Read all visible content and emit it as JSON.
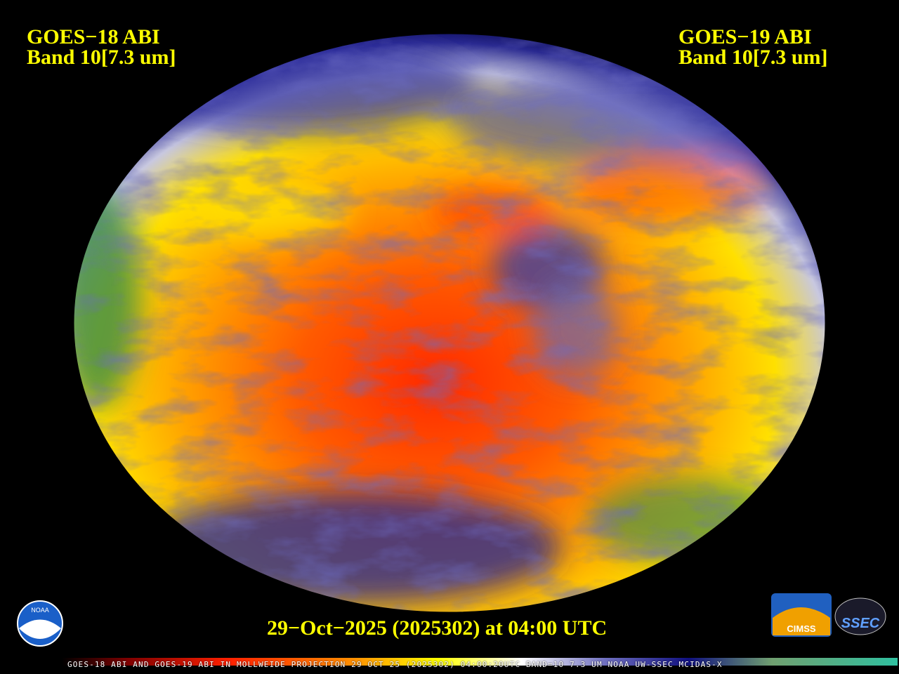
{
  "header": {
    "left": {
      "satellite": "GOES−18 ABI",
      "band": "Band 10[7.3 um]"
    },
    "right": {
      "satellite": "GOES−19 ABI",
      "band": "Band 10[7.3 um]"
    }
  },
  "timestamp": "29−Oct−2025 (2025302) at 04:00 UTC",
  "footer": "GOES-18 ABI AND GOES-19 ABI IN MOLLWEIDE PROJECTION 29 OCT 25 (2025302) 04:00:20UTC BAND=10 7.3 UM NOAA UW-SSEC MCIDAS-X",
  "logos": {
    "noaa": "NOAA",
    "cimss": "CIMSS",
    "ssec": "SSEC"
  }
}
